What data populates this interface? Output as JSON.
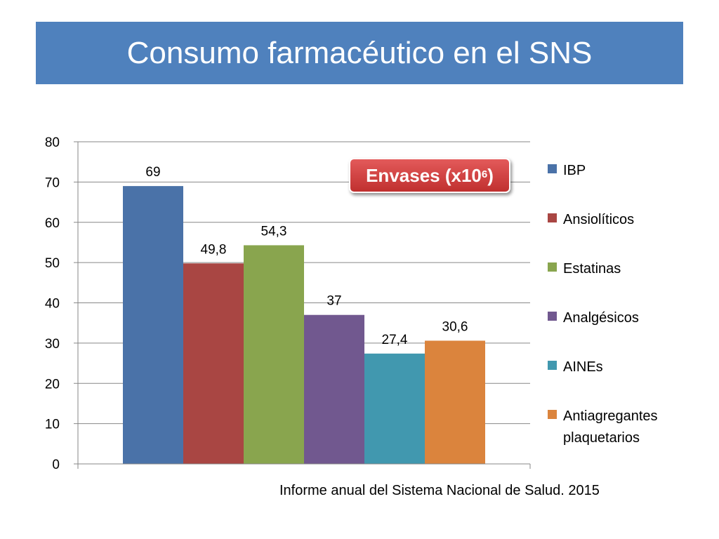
{
  "slide": {
    "title": "Consumo farmacéutico en el SNS",
    "source": "Informe anual del Sistema Nacional de Salud. 2015"
  },
  "badge": {
    "text": "Envases (x10",
    "superscript": "6",
    "closing": ")"
  },
  "chart_data": {
    "type": "bar",
    "categories": [
      "IBP",
      "Ansiolíticos",
      "Estatinas",
      "Analgésicos",
      "AINEs",
      "Antiagregantes plaquetarios"
    ],
    "values": [
      69,
      49.8,
      54.3,
      37,
      27.4,
      30.6
    ],
    "data_labels": [
      "69",
      "49,8",
      "54,3",
      "37",
      "27,4",
      "30,6"
    ],
    "colors": [
      "#4a72a8",
      "#a94643",
      "#89a54e",
      "#71588f",
      "#4198af",
      "#db843d"
    ],
    "yticks": [
      "0",
      "10",
      "20",
      "30",
      "40",
      "50",
      "60",
      "70",
      "80"
    ],
    "ylim": [
      0,
      80
    ],
    "grid": true,
    "legend_position": "right",
    "legend": [
      "IBP",
      "Ansiolíticos",
      "Estatinas",
      "Analgésicos",
      "AINEs",
      [
        "Antiagregantes",
        "plaquetarios"
      ]
    ]
  }
}
